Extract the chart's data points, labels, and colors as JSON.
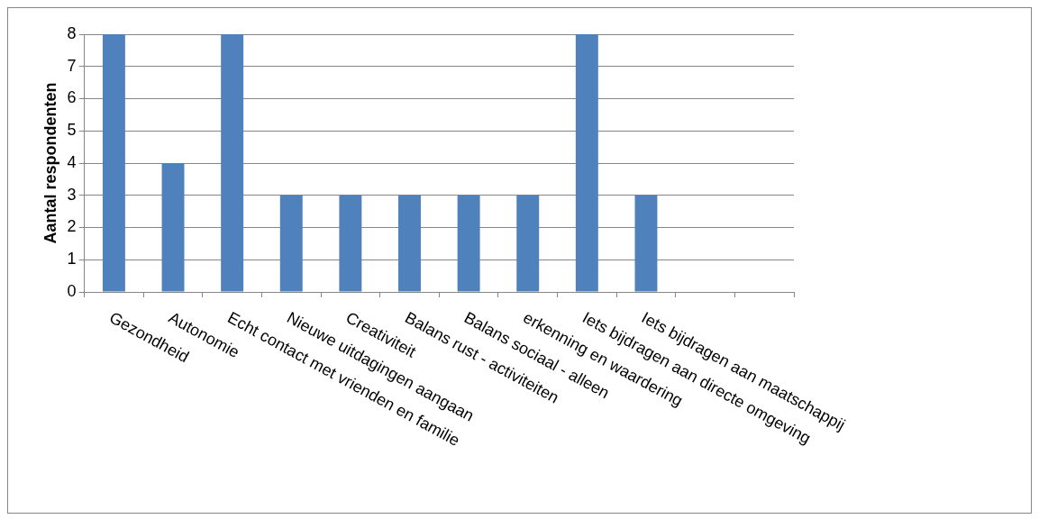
{
  "chart_data": {
    "type": "bar",
    "ylabel": "Aantal respondenten",
    "categories": [
      "Gezondheid",
      "Autonomie",
      "Echt contact met vrienden en familie",
      "Nieuwe uitdagingen aangaan",
      "Creativiteit",
      "Balans rust - activiteiten",
      "Balans sociaal - alleen",
      "erkenning en waardering",
      "Iets bijdragen aan directe omgeving",
      "Iets bijdragen aan maatschappij",
      null,
      null
    ],
    "values": [
      8,
      4,
      8,
      3,
      3,
      3,
      3,
      3,
      8,
      3,
      null,
      null
    ],
    "color": "#4f81bd",
    "ylim": [
      0,
      8
    ],
    "yticks": [
      0,
      1,
      2,
      3,
      4,
      5,
      6,
      7,
      8
    ],
    "grid": "y",
    "legend": false
  }
}
